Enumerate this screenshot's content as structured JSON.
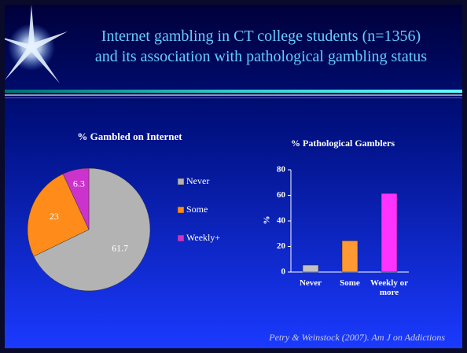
{
  "slide": {
    "title": [
      "Internet gambling in CT college students (n=1356)",
      "and its association with pathological gambling status"
    ],
    "citation": "Petry & Weinstock (2007). Am J on Addictions"
  },
  "chart_data": [
    {
      "type": "pie",
      "title": "% Gambled on Internet",
      "categories": [
        "Never",
        "Some",
        "Weekly+"
      ],
      "values": [
        61.7,
        23,
        6.3
      ],
      "colors": [
        "#b3b3b3",
        "#ff8c1a",
        "#cc33cc"
      ]
    },
    {
      "type": "bar",
      "title": "% Pathological Gamblers",
      "categories": [
        "Never",
        "Some",
        "Weekly or more"
      ],
      "values": [
        5.5,
        24.5,
        61.5
      ],
      "colors": [
        "#c0c0c0",
        "#ff9933",
        "#ff33ff"
      ],
      "ylabel": "%",
      "ylim": [
        0,
        80
      ],
      "yticks": [
        0,
        20,
        40,
        60,
        80
      ]
    }
  ]
}
